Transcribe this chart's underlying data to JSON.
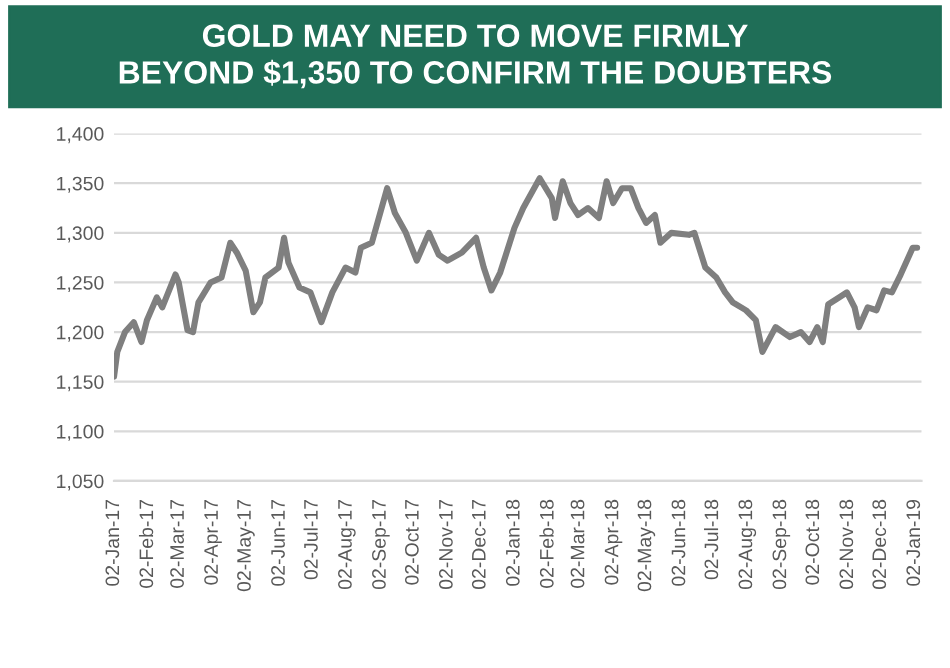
{
  "chart_data": {
    "type": "line",
    "title": "GOLD MAY NEED TO MOVE FIRMLY\nBEYOND $1,350 TO CONFIRM THE DOUBTERS",
    "x": [
      "2017-01-02",
      "2017-01-05",
      "2017-01-12",
      "2017-01-20",
      "2017-01-27",
      "2017-02-01",
      "2017-02-10",
      "2017-02-15",
      "2017-02-27",
      "2017-03-02",
      "2017-03-10",
      "2017-03-15",
      "2017-03-20",
      "2017-03-31",
      "2017-04-10",
      "2017-04-18",
      "2017-04-24",
      "2017-05-02",
      "2017-05-09",
      "2017-05-15",
      "2017-05-20",
      "2017-06-01",
      "2017-06-06",
      "2017-06-10",
      "2017-06-20",
      "2017-06-30",
      "2017-07-10",
      "2017-07-20",
      "2017-08-01",
      "2017-08-10",
      "2017-08-15",
      "2017-08-25",
      "2017-09-08",
      "2017-09-15",
      "2017-09-25",
      "2017-10-05",
      "2017-10-16",
      "2017-10-25",
      "2017-11-02",
      "2017-11-15",
      "2017-11-28",
      "2017-12-05",
      "2017-12-12",
      "2017-12-20",
      "2018-01-02",
      "2018-01-10",
      "2018-01-25",
      "2018-02-05",
      "2018-02-08",
      "2018-02-15",
      "2018-02-22",
      "2018-03-01",
      "2018-03-10",
      "2018-03-20",
      "2018-03-27",
      "2018-04-02",
      "2018-04-10",
      "2018-04-18",
      "2018-04-25",
      "2018-05-02",
      "2018-05-10",
      "2018-05-15",
      "2018-05-25",
      "2018-06-10",
      "2018-06-15",
      "2018-06-25",
      "2018-07-05",
      "2018-07-13",
      "2018-07-20",
      "2018-08-01",
      "2018-08-10",
      "2018-08-16",
      "2018-08-28",
      "2018-09-10",
      "2018-09-20",
      "2018-09-28",
      "2018-10-05",
      "2018-10-10",
      "2018-10-15",
      "2018-10-25",
      "2018-11-01",
      "2018-11-08",
      "2018-11-12",
      "2018-11-20",
      "2018-11-28",
      "2018-12-05",
      "2018-12-12",
      "2018-12-20",
      "2018-12-31",
      "2019-01-04"
    ],
    "series": [
      {
        "color": "#7f7f7f",
        "values": [
          1155,
          1180,
          1200,
          1210,
          1190,
          1212,
          1235,
          1225,
          1258,
          1250,
          1202,
          1200,
          1230,
          1250,
          1255,
          1290,
          1280,
          1262,
          1220,
          1230,
          1255,
          1265,
          1295,
          1270,
          1245,
          1240,
          1210,
          1240,
          1265,
          1260,
          1285,
          1290,
          1345,
          1320,
          1300,
          1272,
          1300,
          1278,
          1272,
          1280,
          1295,
          1265,
          1242,
          1260,
          1305,
          1325,
          1355,
          1335,
          1315,
          1352,
          1330,
          1318,
          1325,
          1315,
          1352,
          1330,
          1345,
          1345,
          1325,
          1310,
          1318,
          1290,
          1300,
          1298,
          1300,
          1265,
          1255,
          1240,
          1230,
          1222,
          1212,
          1180,
          1205,
          1195,
          1200,
          1190,
          1205,
          1190,
          1228,
          1235,
          1240,
          1225,
          1205,
          1225,
          1222,
          1242,
          1240,
          1258,
          1285,
          1285
        ]
      }
    ],
    "ylim": [
      1050,
      1400
    ],
    "yticks": [
      {
        "value": 1050,
        "label": "1,050"
      },
      {
        "value": 1100,
        "label": "1,100"
      },
      {
        "value": 1150,
        "label": "1,150"
      },
      {
        "value": 1200,
        "label": "1,200"
      },
      {
        "value": 1250,
        "label": "1,250"
      },
      {
        "value": 1300,
        "label": "1,300"
      },
      {
        "value": 1350,
        "label": "1,350"
      },
      {
        "value": 1400,
        "label": "1,400"
      }
    ],
    "xlim": [
      "2017-01-02",
      "2019-01-08"
    ],
    "xticks": [
      {
        "value": "2017-01-02",
        "label": "02-Jan-17"
      },
      {
        "value": "2017-02-02",
        "label": "02-Feb-17"
      },
      {
        "value": "2017-03-02",
        "label": "02-Mar-17"
      },
      {
        "value": "2017-04-02",
        "label": "02-Apr-17"
      },
      {
        "value": "2017-05-02",
        "label": "02-May-17"
      },
      {
        "value": "2017-06-02",
        "label": "02-Jun-17"
      },
      {
        "value": "2017-07-02",
        "label": "02-Jul-17"
      },
      {
        "value": "2017-08-02",
        "label": "02-Aug-17"
      },
      {
        "value": "2017-09-02",
        "label": "02-Sep-17"
      },
      {
        "value": "2017-10-02",
        "label": "02-Oct-17"
      },
      {
        "value": "2017-11-02",
        "label": "02-Nov-17"
      },
      {
        "value": "2017-12-02",
        "label": "02-Dec-17"
      },
      {
        "value": "2018-01-02",
        "label": "02-Jan-18"
      },
      {
        "value": "2018-02-02",
        "label": "02-Feb-18"
      },
      {
        "value": "2018-03-02",
        "label": "02-Mar-18"
      },
      {
        "value": "2018-04-02",
        "label": "02-Apr-18"
      },
      {
        "value": "2018-05-02",
        "label": "02-May-18"
      },
      {
        "value": "2018-06-02",
        "label": "02-Jun-18"
      },
      {
        "value": "2018-07-02",
        "label": "02-Jul-18"
      },
      {
        "value": "2018-08-02",
        "label": "02-Aug-18"
      },
      {
        "value": "2018-09-02",
        "label": "02-Sep-18"
      },
      {
        "value": "2018-10-02",
        "label": "02-Oct-18"
      },
      {
        "value": "2018-11-02",
        "label": "02-Nov-18"
      },
      {
        "value": "2018-12-02",
        "label": "02-Dec-18"
      },
      {
        "value": "2019-01-02",
        "label": "02-Jan-19"
      }
    ],
    "grid": "y",
    "legend": false,
    "marker": "none",
    "line_style": "solid"
  }
}
